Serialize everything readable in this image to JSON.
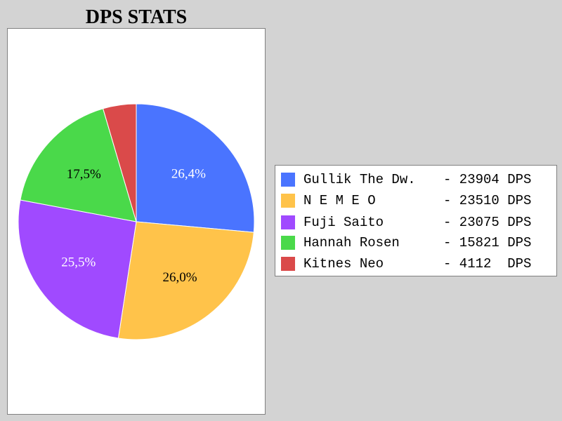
{
  "chart_data": {
    "type": "pie",
    "title": "DPS STATS",
    "series": [
      {
        "name": "Gullik The Dw.",
        "value": 23904,
        "unit": "DPS",
        "percent_label": "26,4%",
        "color": "#4a74ff"
      },
      {
        "name": "N E M E O",
        "value": 23510,
        "unit": "DPS",
        "percent_label": "26,0%",
        "color": "#ffc34a"
      },
      {
        "name": "Fuji Saito",
        "value": 23075,
        "unit": "DPS",
        "percent_label": "25,5%",
        "color": "#a04aff"
      },
      {
        "name": "Hannah Rosen",
        "value": 15821,
        "unit": "DPS",
        "percent_label": "17,5%",
        "color": "#4ad94a"
      },
      {
        "name": "Kitnes Neo",
        "value": 4112,
        "unit": "DPS",
        "percent_label": "",
        "color": "#da4a4a"
      }
    ],
    "legend_entries": [
      {
        "name": "Gullik The Dw.",
        "value_text": "- 23904 DPS"
      },
      {
        "name": "N E M E O",
        "value_text": "- 23510 DPS"
      },
      {
        "name": "Fuji Saito",
        "value_text": "- 23075 DPS"
      },
      {
        "name": "Hannah Rosen",
        "value_text": "- 15821 DPS"
      },
      {
        "name": "Kitnes Neo",
        "value_text": "- 4112  DPS"
      }
    ],
    "label_colors": [
      "#ffffff",
      "#000000",
      "#ffffff",
      "#000000",
      "#ffffff"
    ],
    "legend_placement": "right"
  }
}
